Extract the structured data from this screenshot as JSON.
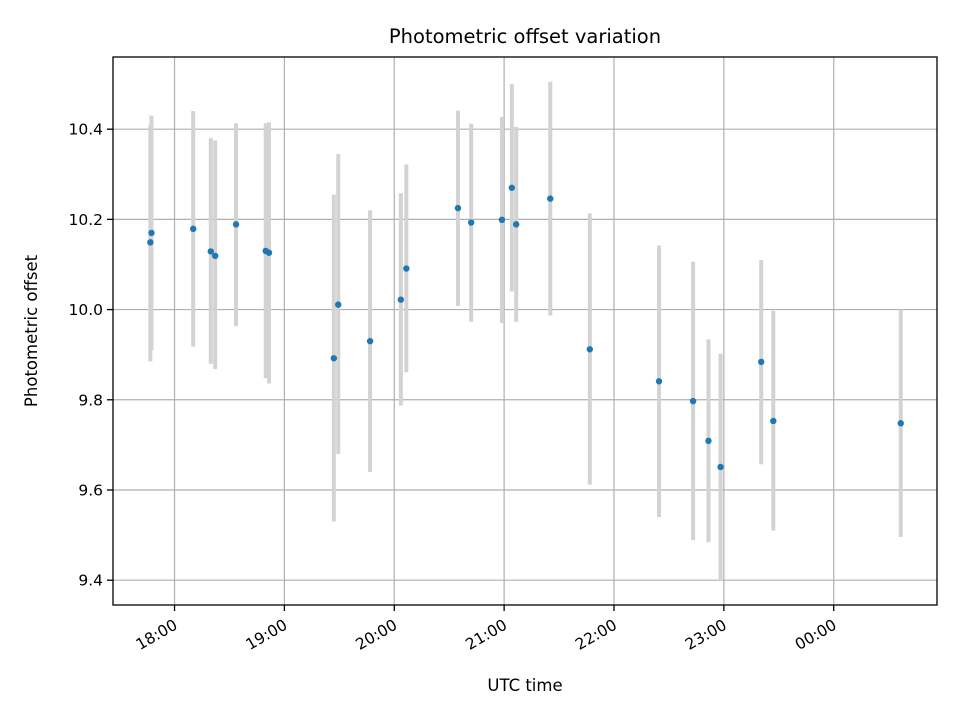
{
  "chart_data": {
    "type": "scatter",
    "title": "Photometric offset variation",
    "xlabel": "UTC time",
    "ylabel": "Photometric offset",
    "x_unit": "UTC time of day (hours; values ≥ 24 fall after midnight)",
    "xlim": [
      17.44,
      24.94
    ],
    "ylim": [
      9.345,
      10.56
    ],
    "x_ticks": [
      {
        "value": 18,
        "label": "18:00"
      },
      {
        "value": 19,
        "label": "19:00"
      },
      {
        "value": 20,
        "label": "20:00"
      },
      {
        "value": 21,
        "label": "21:00"
      },
      {
        "value": 22,
        "label": "22:00"
      },
      {
        "value": 23,
        "label": "23:00"
      },
      {
        "value": 24,
        "label": "00:00"
      }
    ],
    "y_ticks": [
      {
        "value": 9.4,
        "label": "9.4"
      },
      {
        "value": 9.6,
        "label": "9.6"
      },
      {
        "value": 9.8,
        "label": "9.8"
      },
      {
        "value": 10.0,
        "label": "10.0"
      },
      {
        "value": 10.2,
        "label": "10.2"
      },
      {
        "value": 10.4,
        "label": "10.4"
      }
    ],
    "grid": true,
    "legend": false,
    "colors": {
      "point": "#1f77b4",
      "errorbar": "#d3d3d3"
    },
    "points": [
      {
        "x": 17.78,
        "y": 10.149,
        "ylow": 9.885,
        "yhigh": 10.41
      },
      {
        "x": 17.79,
        "y": 10.17,
        "ylow": 9.91,
        "yhigh": 10.43
      },
      {
        "x": 18.17,
        "y": 10.179,
        "ylow": 9.918,
        "yhigh": 10.44
      },
      {
        "x": 18.33,
        "y": 10.129,
        "ylow": 9.88,
        "yhigh": 10.38
      },
      {
        "x": 18.37,
        "y": 10.119,
        "ylow": 9.868,
        "yhigh": 10.375
      },
      {
        "x": 18.56,
        "y": 10.189,
        "ylow": 9.963,
        "yhigh": 10.413
      },
      {
        "x": 18.83,
        "y": 10.13,
        "ylow": 9.848,
        "yhigh": 10.413
      },
      {
        "x": 18.86,
        "y": 10.126,
        "ylow": 9.836,
        "yhigh": 10.415
      },
      {
        "x": 19.45,
        "y": 9.892,
        "ylow": 9.53,
        "yhigh": 10.255
      },
      {
        "x": 19.49,
        "y": 10.011,
        "ylow": 9.68,
        "yhigh": 10.345
      },
      {
        "x": 19.78,
        "y": 9.93,
        "ylow": 9.64,
        "yhigh": 10.22
      },
      {
        "x": 20.06,
        "y": 10.022,
        "ylow": 9.787,
        "yhigh": 10.258
      },
      {
        "x": 20.11,
        "y": 10.091,
        "ylow": 9.861,
        "yhigh": 10.322
      },
      {
        "x": 20.58,
        "y": 10.225,
        "ylow": 10.008,
        "yhigh": 10.441
      },
      {
        "x": 20.7,
        "y": 10.193,
        "ylow": 9.973,
        "yhigh": 10.412
      },
      {
        "x": 20.98,
        "y": 10.199,
        "ylow": 9.97,
        "yhigh": 10.427
      },
      {
        "x": 21.07,
        "y": 10.27,
        "ylow": 10.04,
        "yhigh": 10.5
      },
      {
        "x": 21.11,
        "y": 10.189,
        "ylow": 9.973,
        "yhigh": 10.405
      },
      {
        "x": 21.42,
        "y": 10.246,
        "ylow": 9.987,
        "yhigh": 10.505
      },
      {
        "x": 21.78,
        "y": 9.912,
        "ylow": 9.612,
        "yhigh": 10.213
      },
      {
        "x": 22.41,
        "y": 9.841,
        "ylow": 9.54,
        "yhigh": 10.142
      },
      {
        "x": 22.72,
        "y": 9.797,
        "ylow": 9.489,
        "yhigh": 10.106
      },
      {
        "x": 22.86,
        "y": 9.709,
        "ylow": 9.484,
        "yhigh": 9.934
      },
      {
        "x": 22.97,
        "y": 9.651,
        "ylow": 9.4,
        "yhigh": 9.902
      },
      {
        "x": 23.34,
        "y": 9.884,
        "ylow": 9.657,
        "yhigh": 10.11
      },
      {
        "x": 23.45,
        "y": 9.753,
        "ylow": 9.51,
        "yhigh": 9.997
      },
      {
        "x": 24.61,
        "y": 9.748,
        "ylow": 9.496,
        "yhigh": 10.0
      }
    ]
  }
}
